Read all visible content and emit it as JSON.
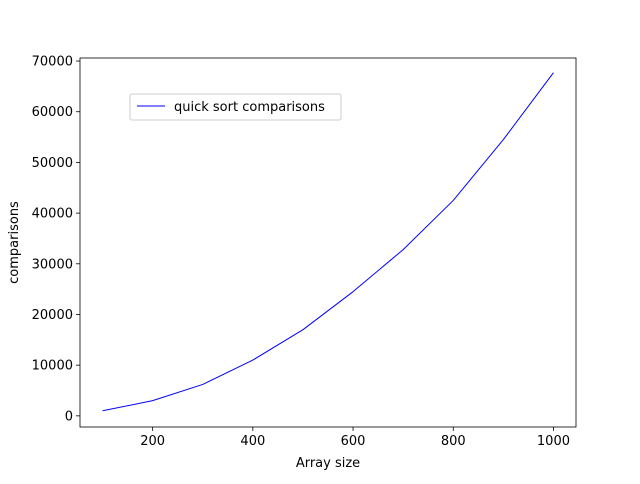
{
  "chart_data": {
    "type": "line",
    "title": "",
    "xlabel": "Array size",
    "ylabel": "comparisons",
    "xlim": [
      55,
      1045
    ],
    "ylim": [
      -2200,
      70600
    ],
    "x_ticks": [
      200,
      400,
      600,
      800,
      1000
    ],
    "y_ticks": [
      0,
      10000,
      20000,
      30000,
      40000,
      50000,
      60000,
      70000
    ],
    "grid": false,
    "legend_position": "upper left",
    "series": [
      {
        "name": "quick sort comparisons",
        "color": "#0000ff",
        "x": [
          100,
          200,
          300,
          400,
          500,
          600,
          700,
          800,
          900,
          1000
        ],
        "y": [
          1000,
          3000,
          6200,
          11000,
          17000,
          24500,
          32800,
          42500,
          54500,
          67700
        ]
      }
    ]
  }
}
